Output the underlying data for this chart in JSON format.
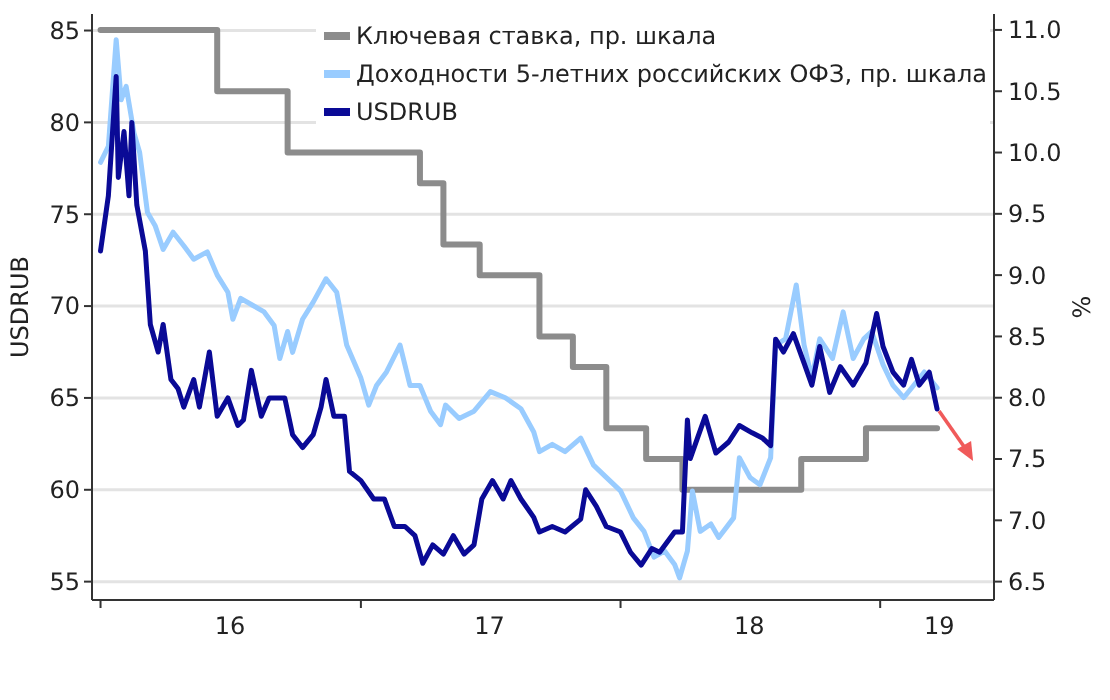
{
  "chart_data": {
    "type": "line",
    "ylabel": "USDRUB",
    "y2label": "%",
    "xlim": [
      "2015-12-20",
      "2019-06-10"
    ],
    "xticks": [
      {
        "value": "2016-01-01",
        "label": null
      },
      {
        "value": "2017-01-01",
        "label": null
      },
      {
        "value": "2018-01-01",
        "label": null
      },
      {
        "value": "2019-01-01",
        "label": null
      },
      {
        "value": "2016-07-01",
        "label": "16"
      },
      {
        "value": "2017-07-01",
        "label": "17"
      },
      {
        "value": "2018-07-01",
        "label": "18"
      },
      {
        "value": "2019-03-25",
        "label": "19"
      }
    ],
    "ylim": [
      54,
      85.9
    ],
    "yticks": [
      55,
      60,
      65,
      70,
      75,
      80,
      85
    ],
    "y2lim": [
      6.35,
      11.13
    ],
    "y2ticks": [
      {
        "value": 6.5,
        "label": "6.5"
      },
      {
        "value": 7,
        "label": "7.0"
      },
      {
        "value": 7.5,
        "label": "7.5"
      },
      {
        "value": 8,
        "label": "8.0"
      },
      {
        "value": 8.5,
        "label": "8.5"
      },
      {
        "value": 9,
        "label": "9.0"
      },
      {
        "value": 9.5,
        "label": "9.5"
      },
      {
        "value": 10,
        "label": "10.0"
      },
      {
        "value": 10.5,
        "label": "10.5"
      },
      {
        "value": 11,
        "label": "11.0"
      }
    ],
    "grid": "y",
    "legend": "top right",
    "line_style": "solid",
    "marker": "none",
    "series": [
      {
        "name": "Ключевая ставка, пр. шкала",
        "type": "step",
        "axis": "y2",
        "color": "#8c8c8c",
        "x": [
          "2016-01-01",
          "2016-06-13",
          "2016-09-20",
          "2017-03-25",
          "2017-04-27",
          "2017-06-17",
          "2017-09-09",
          "2017-10-26",
          "2017-12-12",
          "2018-02-06",
          "2018-03-29",
          "2018-09-12",
          "2018-12-12",
          "2019-03-22"
        ],
        "values": [
          11.0,
          10.5,
          10.0,
          9.75,
          9.25,
          9.0,
          8.5,
          8.25,
          7.75,
          7.5,
          7.25,
          7.5,
          7.75,
          7.75
        ]
      },
      {
        "name": "Доходности 5-летних российских ОФЗ, пр. шкала",
        "axis": "y2",
        "color": "#99ccff",
        "x": [
          "2016-01-01",
          "2016-01-12",
          "2016-01-23",
          "2016-01-30",
          "2016-02-06",
          "2016-02-17",
          "2016-02-25",
          "2016-03-07",
          "2016-03-18",
          "2016-03-29",
          "2016-04-12",
          "2016-04-27",
          "2016-05-11",
          "2016-05-30",
          "2016-06-13",
          "2016-06-28",
          "2016-07-05",
          "2016-07-16",
          "2016-08-03",
          "2016-08-18",
          "2016-09-01",
          "2016-09-09",
          "2016-09-20",
          "2016-09-27",
          "2016-10-11",
          "2016-10-26",
          "2016-11-13",
          "2016-11-28",
          "2016-12-12",
          "2017-01-01",
          "2017-01-12",
          "2017-01-23",
          "2017-02-06",
          "2017-02-25",
          "2017-03-11",
          "2017-03-25",
          "2017-04-09",
          "2017-04-23",
          "2017-04-30",
          "2017-05-19",
          "2017-06-09",
          "2017-07-02",
          "2017-07-23",
          "2017-08-14",
          "2017-09-01",
          "2017-09-09",
          "2017-09-27",
          "2017-10-15",
          "2017-11-06",
          "2017-11-24",
          "2017-12-12",
          "2018-01-01",
          "2018-01-19",
          "2018-02-03",
          "2018-02-17",
          "2018-03-04",
          "2018-03-18",
          "2018-03-25",
          "2018-04-05",
          "2018-04-12",
          "2018-04-23",
          "2018-05-08",
          "2018-05-19",
          "2018-06-09",
          "2018-06-17",
          "2018-07-02",
          "2018-07-16",
          "2018-07-31",
          "2018-08-07",
          "2018-08-21",
          "2018-09-05",
          "2018-09-16",
          "2018-09-27",
          "2018-10-08",
          "2018-10-26",
          "2018-11-10",
          "2018-11-24",
          "2018-12-09",
          "2018-12-20",
          "2019-01-05",
          "2019-01-19",
          "2019-02-03",
          "2019-02-17",
          "2019-03-04",
          "2019-03-22"
        ],
        "values": [
          9.92,
          10.05,
          10.92,
          10.43,
          10.54,
          10.16,
          10.0,
          9.51,
          9.4,
          9.21,
          9.35,
          9.24,
          9.13,
          9.19,
          9.0,
          8.86,
          8.64,
          8.81,
          8.75,
          8.7,
          8.59,
          8.32,
          8.54,
          8.37,
          8.64,
          8.78,
          8.97,
          8.86,
          8.43,
          8.16,
          7.94,
          8.1,
          8.21,
          8.43,
          8.1,
          8.1,
          7.89,
          7.78,
          7.94,
          7.83,
          7.89,
          8.05,
          8.0,
          7.91,
          7.72,
          7.56,
          7.62,
          7.56,
          7.67,
          7.45,
          7.35,
          7.24,
          7.02,
          6.91,
          6.7,
          6.75,
          6.64,
          6.53,
          6.75,
          7.24,
          6.91,
          6.97,
          6.86,
          7.02,
          7.51,
          7.35,
          7.29,
          7.51,
          8.43,
          8.48,
          8.92,
          8.43,
          8.16,
          8.48,
          8.32,
          8.7,
          8.32,
          8.48,
          8.54,
          8.27,
          8.1,
          8.0,
          8.1,
          8.21,
          8.08
        ]
      },
      {
        "name": "USDRUB",
        "color": "#0a0a96",
        "x": [
          "2016-01-01",
          "2016-01-12",
          "2016-01-23",
          "2016-01-26",
          "2016-02-03",
          "2016-02-10",
          "2016-02-14",
          "2016-02-21",
          "2016-03-04",
          "2016-03-11",
          "2016-03-22",
          "2016-03-29",
          "2016-04-09",
          "2016-04-19",
          "2016-04-27",
          "2016-05-11",
          "2016-05-19",
          "2016-06-02",
          "2016-06-13",
          "2016-06-28",
          "2016-07-12",
          "2016-07-20",
          "2016-07-31",
          "2016-08-14",
          "2016-08-25",
          "2016-09-16",
          "2016-09-27",
          "2016-10-11",
          "2016-10-26",
          "2016-11-06",
          "2016-11-13",
          "2016-11-24",
          "2016-12-09",
          "2016-12-16",
          "2017-01-01",
          "2017-01-19",
          "2017-02-03",
          "2017-02-17",
          "2017-03-04",
          "2017-03-18",
          "2017-03-29",
          "2017-04-12",
          "2017-04-27",
          "2017-05-11",
          "2017-05-26",
          "2017-06-09",
          "2017-06-20",
          "2017-07-05",
          "2017-07-20",
          "2017-07-31",
          "2017-08-14",
          "2017-09-01",
          "2017-09-09",
          "2017-09-27",
          "2017-10-15",
          "2017-11-06",
          "2017-11-13",
          "2017-11-28",
          "2017-12-12",
          "2018-01-01",
          "2018-01-15",
          "2018-01-30",
          "2018-02-14",
          "2018-02-25",
          "2018-03-18",
          "2018-03-29",
          "2018-04-05",
          "2018-04-09",
          "2018-04-19",
          "2018-04-30",
          "2018-05-15",
          "2018-06-02",
          "2018-06-17",
          "2018-07-05",
          "2018-07-20",
          "2018-07-31",
          "2018-08-07",
          "2018-08-18",
          "2018-09-01",
          "2018-09-16",
          "2018-09-27",
          "2018-10-08",
          "2018-10-22",
          "2018-11-06",
          "2018-11-24",
          "2018-12-12",
          "2018-12-27",
          "2019-01-05",
          "2019-01-19",
          "2019-02-03",
          "2019-02-14",
          "2019-02-25",
          "2019-03-11",
          "2019-03-22"
        ],
        "values": [
          73,
          76,
          82.5,
          77,
          79.5,
          76,
          80,
          75.5,
          73,
          69,
          67.5,
          69,
          66,
          65.5,
          64.5,
          66,
          64.5,
          67.5,
          64,
          65,
          63.5,
          63.8,
          66.5,
          64,
          65,
          65,
          63,
          62.3,
          63,
          64.5,
          66,
          64,
          64,
          61,
          60.5,
          59.5,
          59.5,
          58,
          58,
          57.5,
          56,
          57,
          56.5,
          57.5,
          56.5,
          57,
          59.5,
          60.5,
          59.5,
          60.5,
          59.5,
          58.5,
          57.7,
          58,
          57.7,
          58.4,
          60,
          59.1,
          58,
          57.7,
          56.6,
          55.9,
          56.8,
          56.6,
          57.7,
          57.7,
          63.8,
          61.7,
          62.8,
          64,
          62,
          62.6,
          63.5,
          63.1,
          62.8,
          62.4,
          68.2,
          67.5,
          68.5,
          66.9,
          65.7,
          67.8,
          65.3,
          66.7,
          65.7,
          66.9,
          69.6,
          67.8,
          66.4,
          65.7,
          67.1,
          65.7,
          66.4,
          64.4
        ]
      }
    ]
  }
}
